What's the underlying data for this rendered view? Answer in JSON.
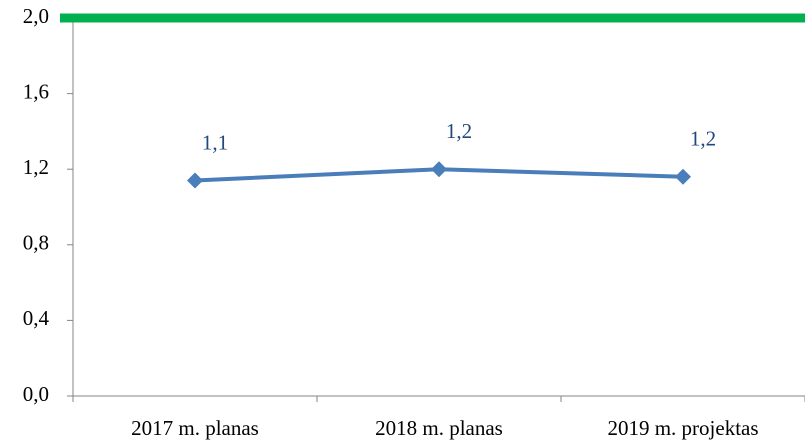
{
  "chart_data": {
    "type": "line",
    "categories": [
      "2017 m. planas",
      "2018 m. planas",
      "2019 m. projektas"
    ],
    "series": [
      {
        "color": "#4a7ebb",
        "values": [
          1.14,
          1.2,
          1.16
        ],
        "value_labels": [
          "1,1",
          "1,2",
          "1,2"
        ]
      }
    ],
    "reference_line": {
      "value": 2.0,
      "color": "#00b050"
    },
    "ylim": [
      0,
      2.0
    ],
    "yticks": [
      {
        "value": 0,
        "label": "0,0"
      },
      {
        "value": 0.4,
        "label": "0,4"
      },
      {
        "value": 0.8,
        "label": "0,8"
      },
      {
        "value": 1.2,
        "label": "1,2"
      },
      {
        "value": 1.6,
        "label": "1,6"
      },
      {
        "value": 2.0,
        "label": "2,0"
      }
    ],
    "grid": false
  }
}
